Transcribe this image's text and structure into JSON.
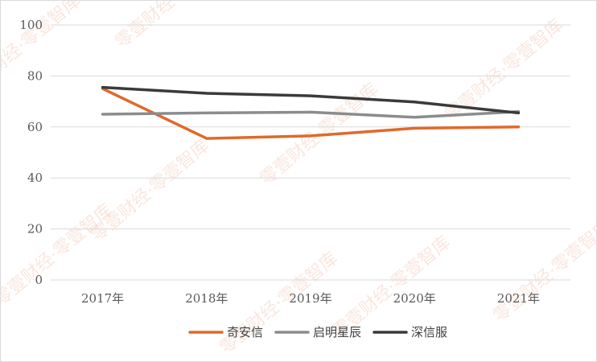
{
  "chart_data": {
    "type": "line",
    "title": "",
    "xlabel": "",
    "ylabel": "",
    "categories": [
      "2017年",
      "2018年",
      "2019年",
      "2020年",
      "2021年"
    ],
    "ylim": [
      0,
      100
    ],
    "yticks": [
      "0",
      "20",
      "40",
      "60",
      "80",
      "100"
    ],
    "grid": true,
    "legend_position": "bottom",
    "series": [
      {
        "name": "奇安信",
        "values": [
          75,
          55.5,
          56.5,
          59.5,
          60
        ],
        "color": "#e0692a"
      },
      {
        "name": "启明星辰",
        "values": [
          65,
          65.5,
          65.8,
          63.8,
          66
        ],
        "color": "#8c8c8c"
      },
      {
        "name": "深信服",
        "values": [
          75.5,
          73.2,
          72.2,
          69.8,
          65.5
        ],
        "color": "#3a3a3a"
      }
    ],
    "watermark_text": "零壹财经·零壹智库"
  }
}
